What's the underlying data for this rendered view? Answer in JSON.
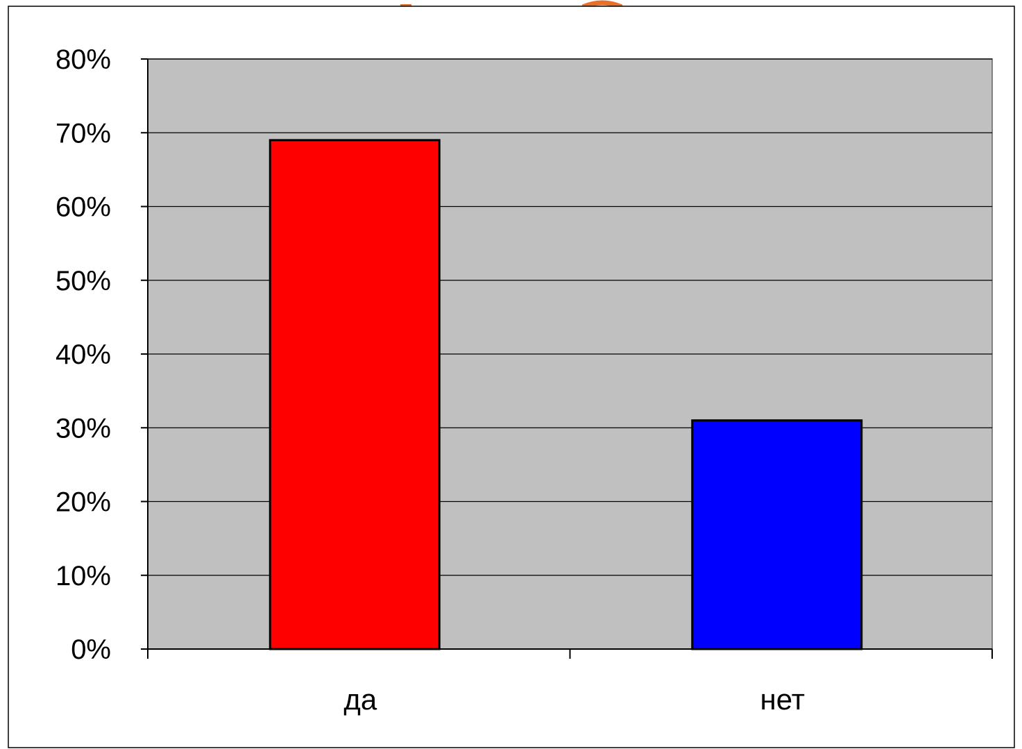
{
  "chart_data": {
    "type": "bar",
    "categories": [
      "да",
      "нет"
    ],
    "values": [
      69,
      31
    ],
    "ylim": [
      0,
      80
    ],
    "ytick_values": [
      0,
      10,
      20,
      30,
      40,
      50,
      60,
      70,
      80
    ],
    "ytick_labels": [
      "0%",
      "10%",
      "20%",
      "30%",
      "40%",
      "50%",
      "60%",
      "70%",
      "80%"
    ],
    "grid": true,
    "legend": "none",
    "title": "",
    "xlabel": "",
    "ylabel": ""
  },
  "colors": {
    "plot_background": "#c0c0c0",
    "bars": [
      "#ff0000",
      "#0000ff"
    ],
    "grid": "#000000",
    "partial_title_fragment": "#e8702a"
  }
}
